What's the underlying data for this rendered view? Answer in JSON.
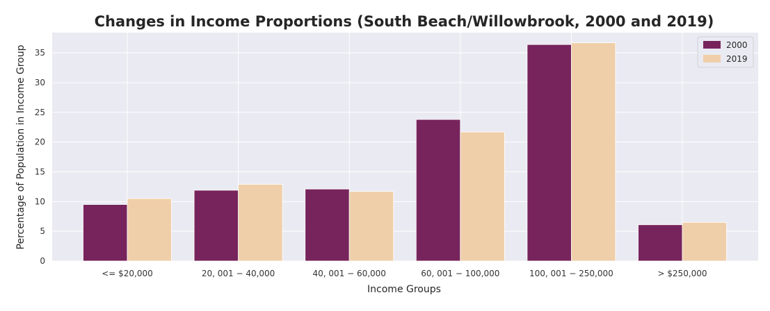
{
  "chart_data": {
    "type": "bar",
    "title": "Changes in Income Proportions (South Beach/Willowbrook, 2000 and 2019)",
    "xlabel": "Income Groups",
    "ylabel": "Percentage of Population in Income Group",
    "categories": [
      "<= $20,000",
      "20, 001 − 40,000",
      "40, 001 − 60,000",
      "60, 001 − 100,000",
      "100, 001 − 250,000",
      "> $250,000"
    ],
    "series": [
      {
        "name": "2000",
        "color": "#77245c",
        "values": [
          9.5,
          11.9,
          12.1,
          23.8,
          36.4,
          6.1
        ]
      },
      {
        "name": "2019",
        "color": "#efcfa9",
        "values": [
          10.5,
          12.9,
          11.7,
          21.7,
          36.7,
          6.5
        ]
      }
    ],
    "ylim": [
      0,
      38.4
    ],
    "yticks": [
      0,
      5,
      10,
      15,
      20,
      25,
      30,
      35
    ],
    "grid": true,
    "legend_position": "top-right"
  }
}
